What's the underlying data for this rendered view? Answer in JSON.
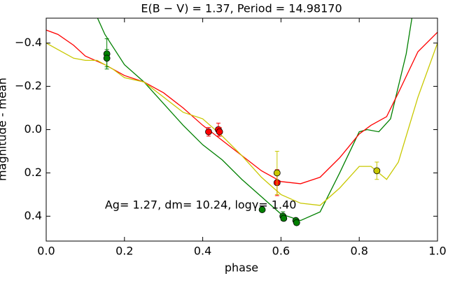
{
  "chart_data": {
    "type": "line",
    "title": "E(B − V) = 1.37, Period = 14.98170",
    "xlabel": "phase",
    "ylabel": "magnitude - mean",
    "annotation": "Ag= 1.27, dm=  10.24, logγ=  1.40",
    "xlim": [
      0,
      1
    ],
    "ylim": [
      0.515,
      -0.515
    ],
    "xticks": [
      {
        "value": 0,
        "label": "0.0"
      },
      0.2,
      0.4,
      0.6,
      0.8,
      {
        "value": 1,
        "label": "1.0"
      }
    ],
    "yticks": [
      {
        "value": -0.4,
        "label": "−0.4"
      },
      {
        "value": -0.2,
        "label": "−0.2"
      },
      {
        "value": 0,
        "label": "0.0"
      },
      0.2,
      0.4
    ],
    "series": [
      {
        "color": "#008000",
        "x": [
          0.13,
          0.15,
          0.2,
          0.25,
          0.3,
          0.35,
          0.4,
          0.45,
          0.5,
          0.55,
          0.6,
          0.65,
          0.7,
          0.75,
          0.8,
          0.82,
          0.85,
          0.88,
          0.92,
          0.935
        ],
        "values": [
          -0.52,
          -0.44,
          -0.3,
          -0.22,
          -0.12,
          -0.02,
          0.07,
          0.14,
          0.23,
          0.31,
          0.39,
          0.42,
          0.38,
          0.2,
          0.01,
          0.0,
          0.01,
          -0.05,
          -0.35,
          -0.52
        ]
      },
      {
        "color": "#ff0000",
        "x": [
          0,
          0.03,
          0.07,
          0.1,
          0.15,
          0.2,
          0.25,
          0.3,
          0.35,
          0.4,
          0.45,
          0.5,
          0.55,
          0.6,
          0.65,
          0.7,
          0.75,
          0.8,
          0.83,
          0.87,
          0.9,
          0.95,
          1.0
        ],
        "values": [
          -0.46,
          -0.44,
          -0.39,
          -0.34,
          -0.3,
          -0.25,
          -0.22,
          -0.17,
          -0.1,
          -0.02,
          0.05,
          0.12,
          0.19,
          0.24,
          0.25,
          0.22,
          0.13,
          0.02,
          -0.02,
          -0.06,
          -0.17,
          -0.36,
          -0.45
        ]
      },
      {
        "color": "#c8c800",
        "x": [
          0,
          0.03,
          0.07,
          0.1,
          0.13,
          0.17,
          0.2,
          0.25,
          0.3,
          0.35,
          0.4,
          0.45,
          0.5,
          0.55,
          0.6,
          0.65,
          0.7,
          0.75,
          0.8,
          0.83,
          0.87,
          0.9,
          0.95,
          1.0
        ],
        "values": [
          -0.4,
          -0.37,
          -0.33,
          -0.32,
          -0.32,
          -0.28,
          -0.24,
          -0.22,
          -0.15,
          -0.08,
          -0.05,
          0.03,
          0.12,
          0.22,
          0.3,
          0.34,
          0.35,
          0.27,
          0.17,
          0.17,
          0.23,
          0.15,
          -0.15,
          -0.4
        ]
      }
    ],
    "points": [
      {
        "color": "#008000",
        "x": [
          0.155,
          0.155,
          0.552,
          0.605,
          0.607,
          0.638,
          0.64
        ],
        "values": [
          -0.35,
          -0.33,
          0.37,
          0.4,
          0.41,
          0.42,
          0.43
        ],
        "errors": [
          0.07,
          0.04,
          0.01,
          0.02,
          0.01,
          0.01,
          0.01
        ]
      },
      {
        "color": "#ff0000",
        "x": [
          0.415,
          0.44,
          0.443,
          0.59
        ],
        "values": [
          0.01,
          0.0,
          0.01,
          0.245
        ],
        "errors": [
          0.02,
          0.03,
          0.02,
          0.06
        ]
      },
      {
        "color": "#c8c800",
        "x": [
          0.59,
          0.845
        ],
        "values": [
          0.2,
          0.19
        ],
        "errors": [
          0.1,
          0.04
        ]
      }
    ]
  }
}
